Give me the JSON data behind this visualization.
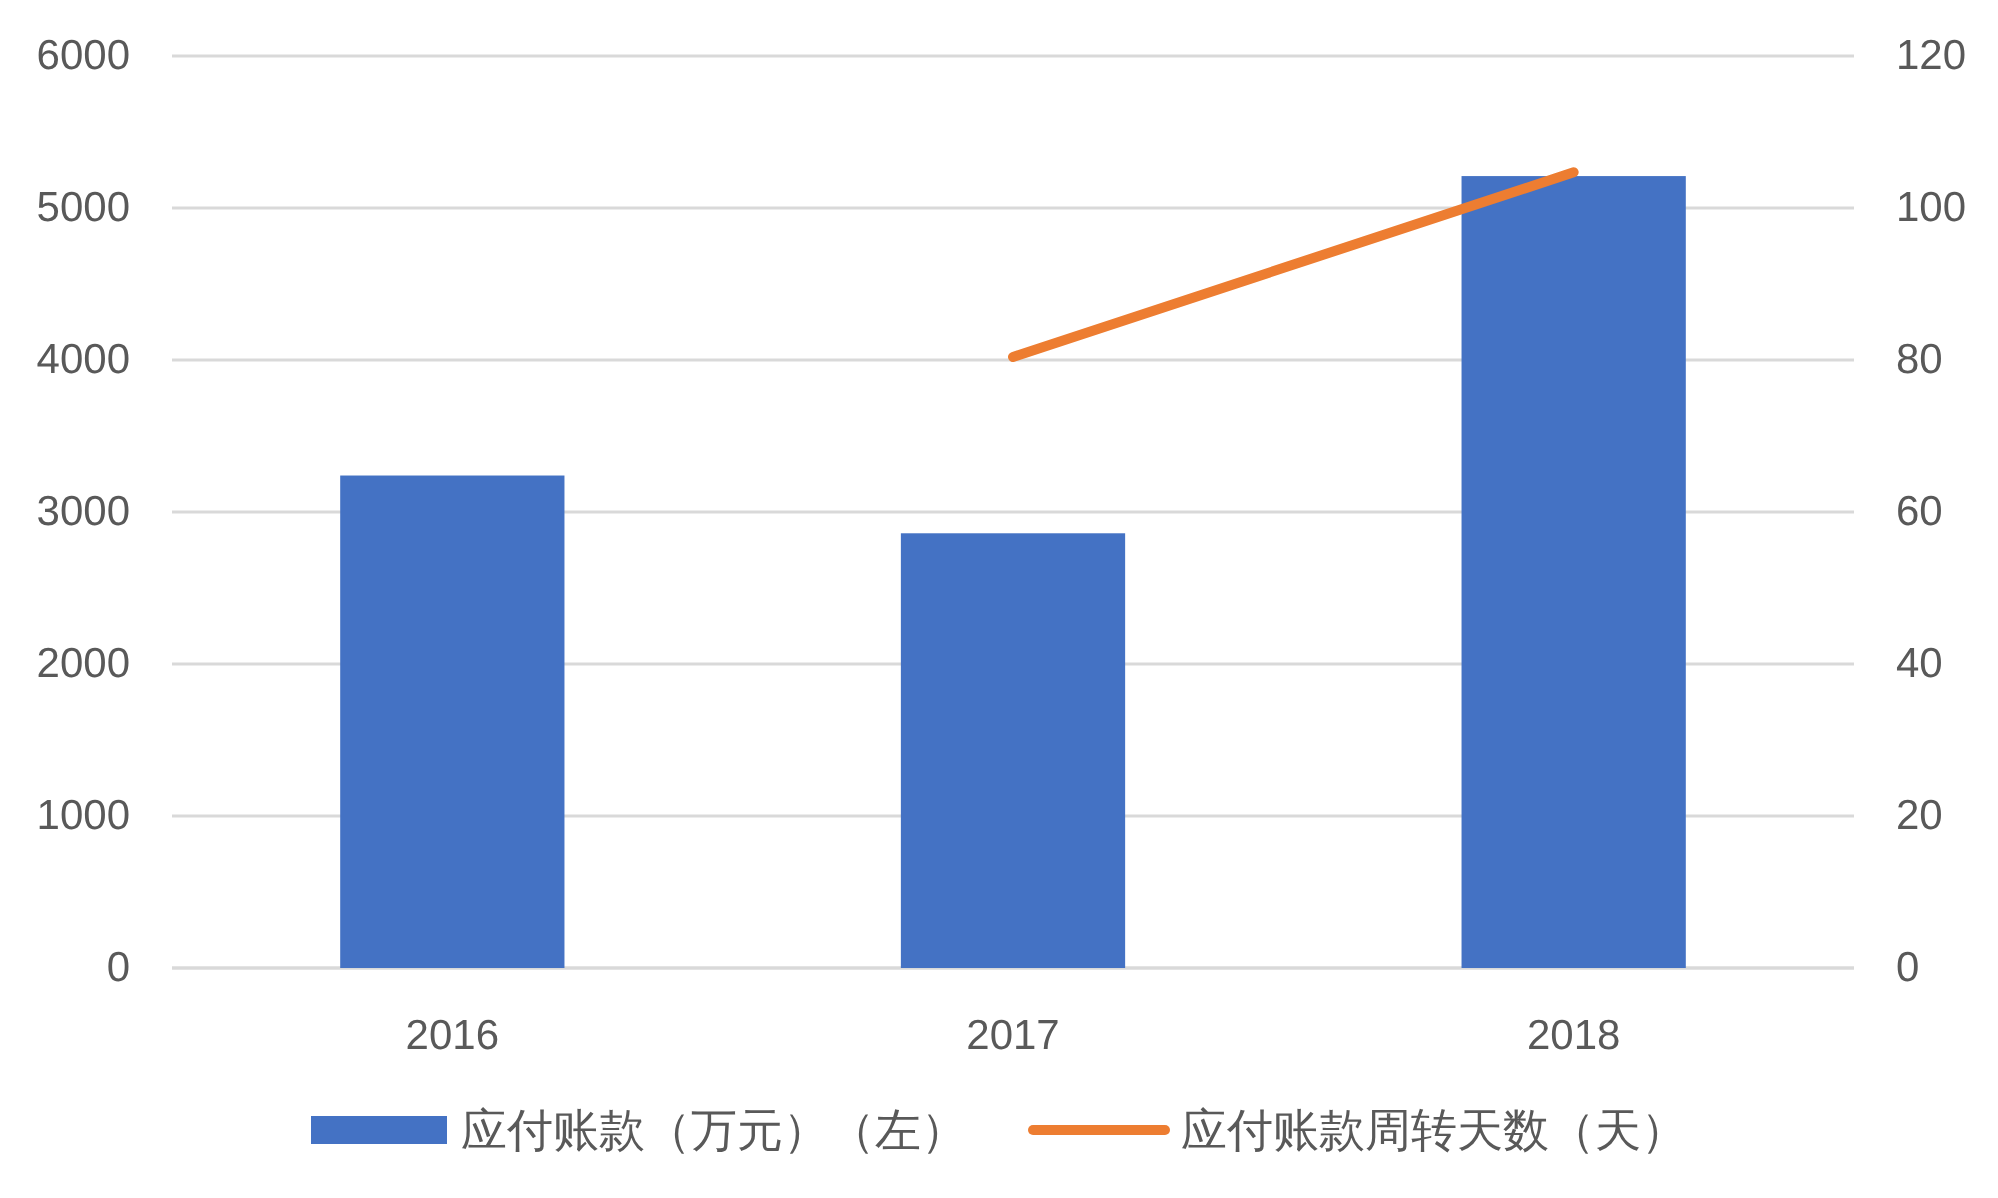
{
  "chart_data": {
    "type": "bar",
    "categories": [
      "2016",
      "2017",
      "2018"
    ],
    "series": [
      {
        "name": "应付账款（万元）（左）",
        "color": "#4472c4",
        "values": [
          3240,
          2860,
          5210
        ]
      },
      {
        "name": "应付账款周转天数（天）",
        "type": "line",
        "axis": "y2",
        "color": "#ed7d31",
        "values": [
          null,
          80.4,
          104.7
        ]
      }
    ],
    "ylim": [
      0,
      6000
    ],
    "yticks": [
      0,
      1000,
      2000,
      3000,
      4000,
      5000,
      6000
    ],
    "y2lim": [
      0,
      120
    ],
    "y2ticks": [
      0,
      20,
      40,
      60,
      80,
      100,
      120
    ],
    "grid": "y",
    "legend": "bottom"
  }
}
